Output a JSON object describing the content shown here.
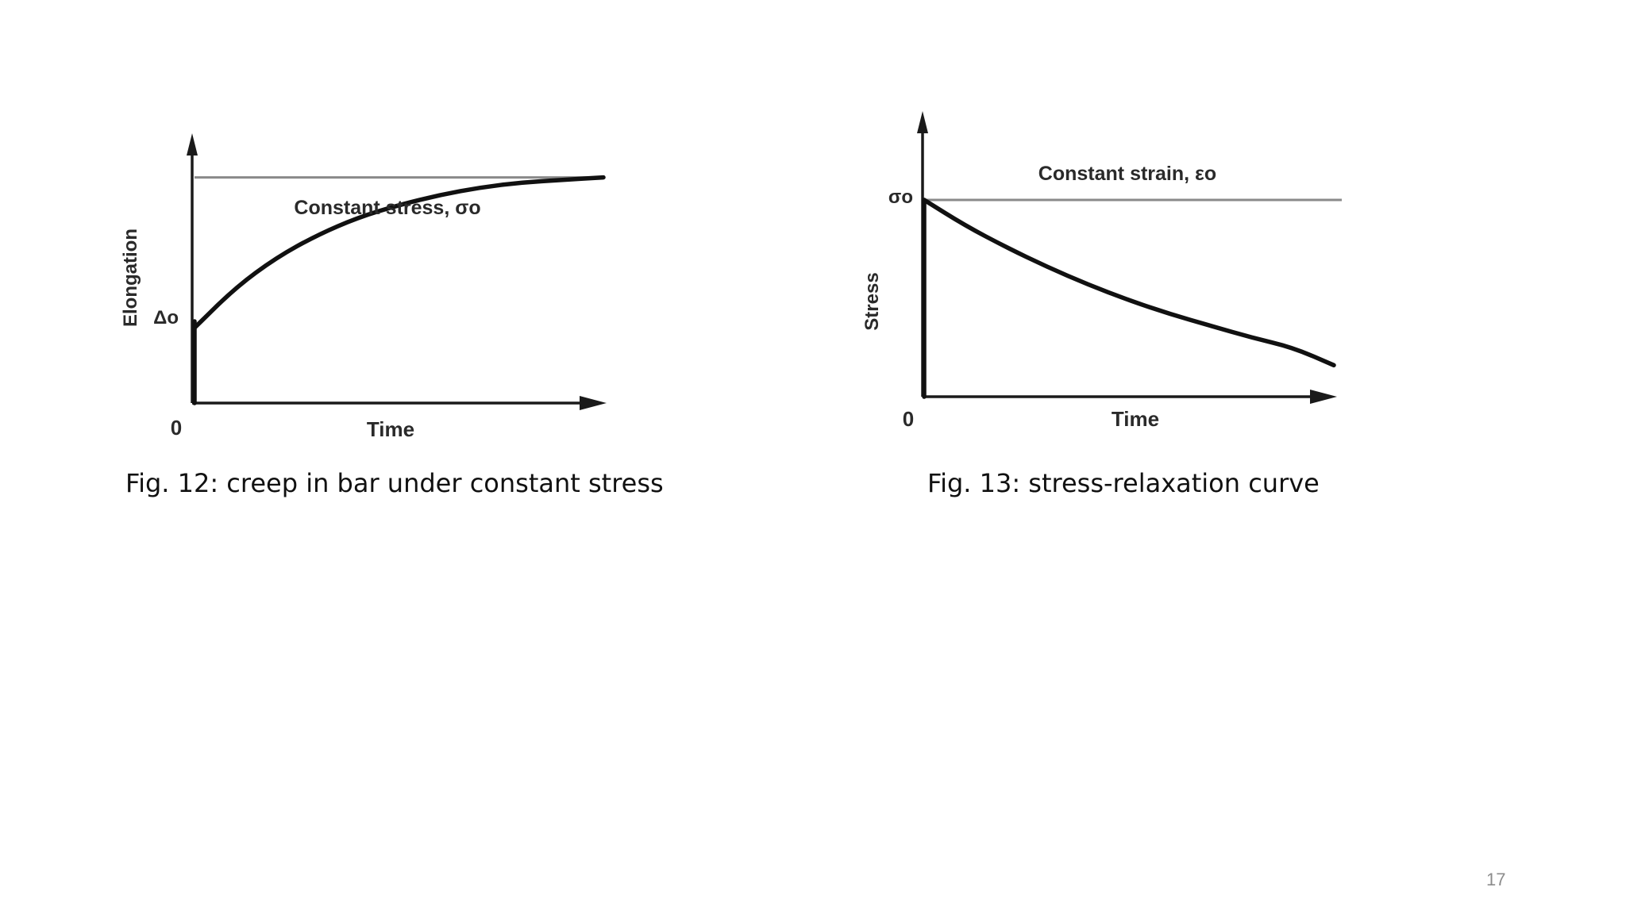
{
  "chart_data": [
    {
      "type": "line",
      "title": "",
      "xlabel": "Time",
      "ylabel": "Elongation",
      "x_tick_labels": [
        "0"
      ],
      "y_tick_labels": [
        "Δo"
      ],
      "reference_line_label": "Constant stress, σo",
      "series": [
        {
          "x": [
            0,
            0.1,
            0.2,
            0.3,
            0.4,
            0.5,
            0.6,
            0.7,
            0.8,
            0.9,
            1.0
          ],
          "values": [
            0.3,
            0.46,
            0.58,
            0.67,
            0.74,
            0.79,
            0.83,
            0.86,
            0.88,
            0.89,
            0.9
          ]
        }
      ],
      "reference_value": 0.9,
      "grid": false,
      "colors": {
        "curve": "#111111",
        "reference": "#8a8a8a",
        "axis": "#1a1a1a"
      }
    },
    {
      "type": "line",
      "title": "",
      "xlabel": "Time",
      "ylabel": "Stress",
      "x_tick_labels": [
        "0"
      ],
      "y_tick_labels": [
        "σo"
      ],
      "reference_line_label": "Constant strain, εo",
      "series": [
        {
          "x": [
            0,
            0.1,
            0.2,
            0.3,
            0.4,
            0.5,
            0.6,
            0.7,
            0.8,
            0.9,
            1.0
          ],
          "values": [
            1.0,
            0.87,
            0.76,
            0.66,
            0.57,
            0.49,
            0.42,
            0.36,
            0.3,
            0.25,
            0.16
          ]
        }
      ],
      "reference_value": 1.0,
      "grid": false,
      "colors": {
        "curve": "#111111",
        "reference": "#8a8a8a",
        "axis": "#1a1a1a"
      }
    }
  ],
  "captions": {
    "fig12": "Fig. 12: creep in bar under constant stress",
    "fig13": "Fig. 13: stress-relaxation curve"
  },
  "page_number": "17"
}
